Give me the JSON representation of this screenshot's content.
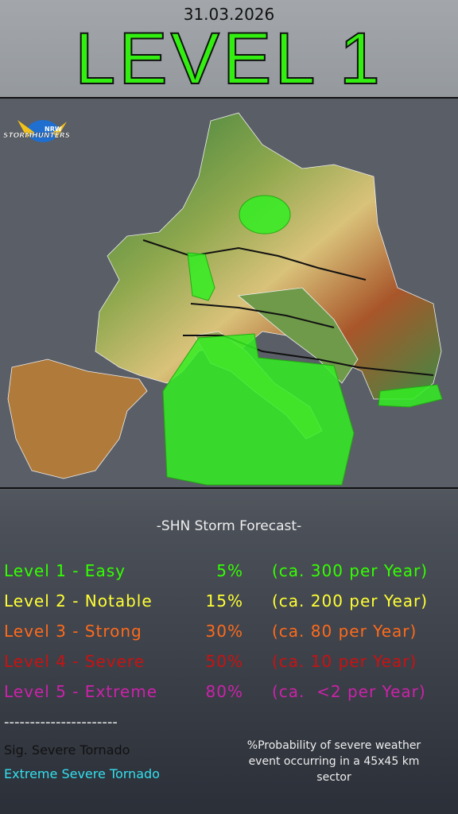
{
  "header": {
    "date": "31.03.2026",
    "title": "LEVEL 1"
  },
  "logo": {
    "small": "NRW",
    "name": "STORMHUNTERS"
  },
  "forecast": {
    "heading": "-SHN Storm Forecast-",
    "levels": [
      {
        "name": "Level 1 - Easy",
        "probability": "5%",
        "frequency": "(ca. 300 per Year)"
      },
      {
        "name": "Level 2 - Notable",
        "probability": "15%",
        "frequency": "(ca. 200 per Year)"
      },
      {
        "name": "Level 3 - Strong",
        "probability": "30%",
        "frequency": "(ca. 80 per Year)"
      },
      {
        "name": "Level 4 - Severe",
        "probability": "50%",
        "frequency": "(ca. 10 per Year)"
      },
      {
        "name": "Level 5 - Extreme",
        "probability": "80%",
        "frequency": "(ca.  <2 per Year)"
      }
    ],
    "separator": "----------------------",
    "tornado": [
      "Sig. Severe Tornado",
      "Extreme Severe Tornado"
    ],
    "note": "%Probability of severe weather event occurring in a 45x45 km sector"
  }
}
